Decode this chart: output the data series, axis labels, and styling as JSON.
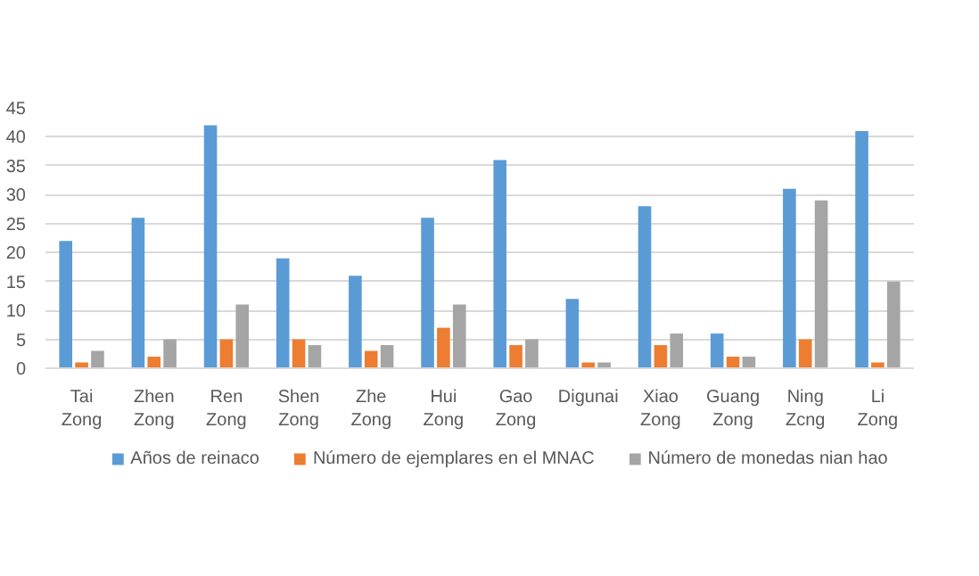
{
  "chart_data": {
    "type": "bar",
    "categories": [
      "Tai Zong",
      "Zhen Zong",
      "Ren Zong",
      "Shen Zong",
      "Zhe Zong",
      "Hui Zong",
      "Gao Zong",
      "Digunai",
      "Xiao Zong",
      "Guang Zong",
      "Ning Zcng",
      "Li Zong"
    ],
    "series": [
      {
        "name": "Años de reinaco",
        "color": "#5b9bd5",
        "values": [
          22,
          26,
          42,
          19,
          16,
          26,
          36,
          12,
          28,
          6,
          31,
          41
        ]
      },
      {
        "name": "Número de ejemplares en el MNAC",
        "color": "#ed7d31",
        "values": [
          1,
          2,
          5,
          5,
          3,
          7,
          4,
          1,
          4,
          2,
          5,
          1
        ]
      },
      {
        "name": "Número de monedas nian hao",
        "color": "#a5a5a5",
        "values": [
          3,
          5,
          11,
          4,
          4,
          11,
          5,
          1,
          6,
          2,
          29,
          15
        ]
      }
    ],
    "ylim": [
      0,
      45
    ],
    "yticks": [
      0,
      5,
      10,
      15,
      20,
      25,
      30,
      35,
      40,
      45
    ],
    "grid": "y",
    "legend": "bottom"
  }
}
